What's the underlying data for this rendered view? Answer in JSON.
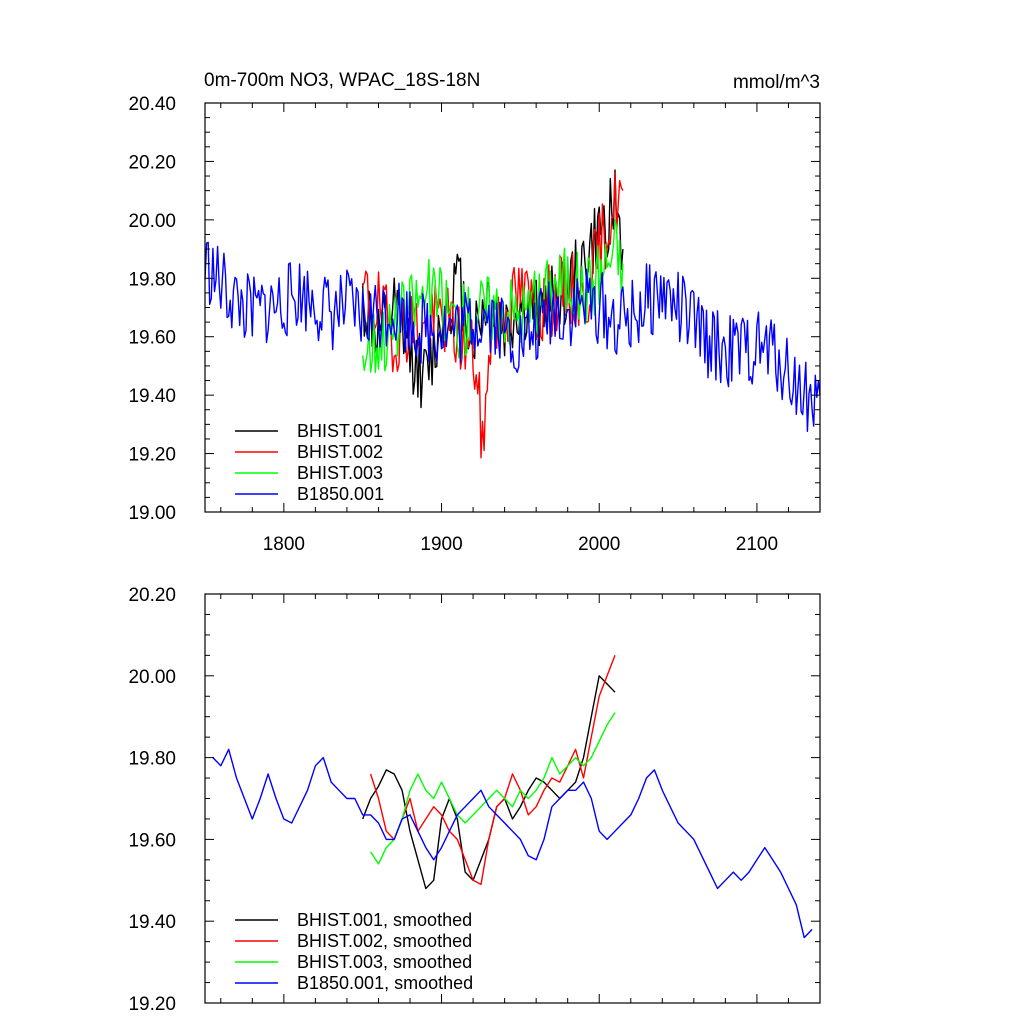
{
  "chart_data": [
    {
      "type": "line",
      "title": "0m-700m NO3, WPAC_18S-18N",
      "units": "mmol/m^3",
      "xlim": [
        1750,
        2140
      ],
      "ylim": [
        19.0,
        20.4
      ],
      "x_ticks": [
        1800,
        1900,
        2000,
        2100
      ],
      "x_tick_labels": [
        "1800",
        "1900",
        "2000",
        "2100"
      ],
      "y_ticks": [
        19.0,
        19.2,
        19.4,
        19.6,
        19.8,
        20.0,
        20.2,
        20.4
      ],
      "y_tick_labels": [
        "19.00",
        "19.20",
        "19.40",
        "19.60",
        "19.80",
        "20.00",
        "20.20",
        "20.40"
      ],
      "grid": false,
      "legend_position": "bottom-left",
      "series": [
        {
          "name": "BHIST.001",
          "color": "#000000",
          "x": [
            1850,
            1860,
            1870,
            1880,
            1890,
            1900,
            1910,
            1920,
            1930,
            1940,
            1950,
            1960,
            1970,
            1980,
            1990,
            2000,
            2010,
            2015
          ],
          "y": [
            19.72,
            19.6,
            19.68,
            19.55,
            19.45,
            19.65,
            19.8,
            19.6,
            19.75,
            19.62,
            19.7,
            19.68,
            19.72,
            19.76,
            19.85,
            19.95,
            20.05,
            19.9
          ]
        },
        {
          "name": "BHIST.002",
          "color": "#ff0000",
          "x": [
            1850,
            1860,
            1870,
            1880,
            1890,
            1900,
            1910,
            1920,
            1927,
            1930,
            1940,
            1950,
            1960,
            1970,
            1980,
            1990,
            2000,
            2010,
            2015
          ],
          "y": [
            19.75,
            19.7,
            19.6,
            19.65,
            19.62,
            19.68,
            19.6,
            19.55,
            19.2,
            19.6,
            19.68,
            19.75,
            19.7,
            19.72,
            19.78,
            19.7,
            19.9,
            20.05,
            20.1
          ]
        },
        {
          "name": "BHIST.003",
          "color": "#00ff00",
          "x": [
            1850,
            1860,
            1870,
            1880,
            1890,
            1900,
            1910,
            1920,
            1930,
            1940,
            1950,
            1960,
            1970,
            1980,
            1990,
            2000,
            2010,
            2015
          ],
          "y": [
            19.55,
            19.6,
            19.62,
            19.7,
            19.75,
            19.72,
            19.65,
            19.68,
            19.7,
            19.7,
            19.68,
            19.7,
            19.78,
            19.8,
            19.75,
            19.82,
            19.9,
            19.85
          ]
        },
        {
          "name": "B1850.001",
          "color": "#0000ff",
          "x": [
            1750,
            1760,
            1770,
            1780,
            1790,
            1800,
            1810,
            1820,
            1830,
            1840,
            1850,
            1860,
            1870,
            1880,
            1890,
            1900,
            1910,
            1920,
            1930,
            1940,
            1950,
            1960,
            1970,
            1980,
            1990,
            2000,
            2010,
            2020,
            2030,
            2040,
            2050,
            2060,
            2070,
            2080,
            2090,
            2100,
            2110,
            2120,
            2130,
            2140
          ],
          "y": [
            19.85,
            19.78,
            19.72,
            19.68,
            19.7,
            19.72,
            19.75,
            19.72,
            19.68,
            19.7,
            19.66,
            19.68,
            19.7,
            19.66,
            19.62,
            19.64,
            19.62,
            19.66,
            19.68,
            19.62,
            19.58,
            19.62,
            19.7,
            19.68,
            19.72,
            19.7,
            19.65,
            19.66,
            19.72,
            19.75,
            19.7,
            19.64,
            19.58,
            19.55,
            19.55,
            19.56,
            19.55,
            19.48,
            19.4,
            19.4
          ]
        }
      ]
    },
    {
      "type": "line",
      "xlim": [
        1750,
        2140
      ],
      "ylim": [
        19.2,
        20.2
      ],
      "x_ticks": [
        1800,
        1900,
        2000,
        2100
      ],
      "y_ticks": [
        19.2,
        19.4,
        19.6,
        19.8,
        20.0,
        20.2
      ],
      "y_tick_labels": [
        "19.20",
        "19.40",
        "19.60",
        "19.80",
        "20.00",
        "20.20"
      ],
      "grid": false,
      "legend_position": "bottom-left",
      "series": [
        {
          "name": "BHIST.001, smoothed",
          "color": "#000000",
          "x": [
            1850,
            1855,
            1860,
            1865,
            1870,
            1875,
            1880,
            1885,
            1890,
            1895,
            1900,
            1905,
            1910,
            1915,
            1920,
            1925,
            1930,
            1935,
            1940,
            1945,
            1950,
            1955,
            1960,
            1965,
            1970,
            1975,
            1980,
            1985,
            1990,
            1995,
            2000,
            2005,
            2010
          ],
          "y": [
            19.65,
            19.7,
            19.73,
            19.77,
            19.76,
            19.72,
            19.62,
            19.55,
            19.48,
            19.5,
            19.65,
            19.7,
            19.65,
            19.52,
            19.5,
            19.55,
            19.6,
            19.68,
            19.7,
            19.65,
            19.68,
            19.72,
            19.75,
            19.74,
            19.72,
            19.7,
            19.72,
            19.74,
            19.8,
            19.9,
            20.0,
            19.98,
            19.96
          ]
        },
        {
          "name": "BHIST.002, smoothed",
          "color": "#ff0000",
          "x": [
            1855,
            1860,
            1865,
            1870,
            1875,
            1880,
            1885,
            1890,
            1895,
            1900,
            1905,
            1910,
            1915,
            1920,
            1925,
            1930,
            1935,
            1940,
            1945,
            1950,
            1955,
            1960,
            1965,
            1970,
            1975,
            1980,
            1985,
            1990,
            1995,
            2000,
            2005,
            2010
          ],
          "y": [
            19.76,
            19.7,
            19.62,
            19.6,
            19.65,
            19.7,
            19.62,
            19.65,
            19.68,
            19.66,
            19.62,
            19.6,
            19.55,
            19.5,
            19.49,
            19.6,
            19.68,
            19.7,
            19.76,
            19.72,
            19.66,
            19.68,
            19.72,
            19.75,
            19.74,
            19.78,
            19.82,
            19.75,
            19.85,
            19.95,
            20.0,
            20.05
          ]
        },
        {
          "name": "BHIST.003, smoothed",
          "color": "#00ff00",
          "x": [
            1855,
            1860,
            1865,
            1870,
            1875,
            1880,
            1885,
            1890,
            1895,
            1900,
            1905,
            1910,
            1915,
            1920,
            1925,
            1930,
            1935,
            1940,
            1945,
            1950,
            1955,
            1960,
            1965,
            1970,
            1975,
            1980,
            1985,
            1990,
            1995,
            2000,
            2005,
            2010
          ],
          "y": [
            19.57,
            19.54,
            19.58,
            19.6,
            19.65,
            19.72,
            19.76,
            19.72,
            19.7,
            19.74,
            19.7,
            19.66,
            19.64,
            19.66,
            19.68,
            19.7,
            19.72,
            19.7,
            19.68,
            19.72,
            19.7,
            19.72,
            19.75,
            19.8,
            19.76,
            19.78,
            19.8,
            19.78,
            19.8,
            19.84,
            19.88,
            19.91
          ]
        },
        {
          "name": "B1850.001, smoothed",
          "color": "#0000ff",
          "x": [
            1755,
            1760,
            1765,
            1770,
            1775,
            1780,
            1785,
            1790,
            1795,
            1800,
            1805,
            1810,
            1815,
            1820,
            1825,
            1830,
            1835,
            1840,
            1845,
            1850,
            1855,
            1860,
            1865,
            1870,
            1875,
            1880,
            1885,
            1890,
            1895,
            1900,
            1905,
            1910,
            1915,
            1920,
            1925,
            1930,
            1935,
            1940,
            1945,
            1950,
            1955,
            1960,
            1965,
            1970,
            1975,
            1980,
            1985,
            1990,
            1995,
            2000,
            2005,
            2010,
            2015,
            2020,
            2025,
            2030,
            2035,
            2040,
            2045,
            2050,
            2055,
            2060,
            2065,
            2070,
            2075,
            2080,
            2085,
            2090,
            2095,
            2100,
            2105,
            2110,
            2115,
            2120,
            2125,
            2130,
            2135
          ],
          "y": [
            19.8,
            19.78,
            19.82,
            19.75,
            19.7,
            19.65,
            19.7,
            19.76,
            19.7,
            19.65,
            19.64,
            19.68,
            19.72,
            19.78,
            19.8,
            19.74,
            19.72,
            19.7,
            19.7,
            19.66,
            19.66,
            19.64,
            19.6,
            19.6,
            19.65,
            19.66,
            19.62,
            19.58,
            19.55,
            19.58,
            19.62,
            19.66,
            19.68,
            19.7,
            19.72,
            19.68,
            19.66,
            19.64,
            19.62,
            19.6,
            19.56,
            19.55,
            19.6,
            19.68,
            19.7,
            19.72,
            19.72,
            19.74,
            19.7,
            19.62,
            19.6,
            19.62,
            19.64,
            19.66,
            19.7,
            19.75,
            19.77,
            19.72,
            19.68,
            19.64,
            19.62,
            19.6,
            19.56,
            19.52,
            19.48,
            19.5,
            19.52,
            19.5,
            19.52,
            19.55,
            19.58,
            19.55,
            19.52,
            19.48,
            19.44,
            19.36,
            19.38
          ]
        }
      ]
    }
  ]
}
